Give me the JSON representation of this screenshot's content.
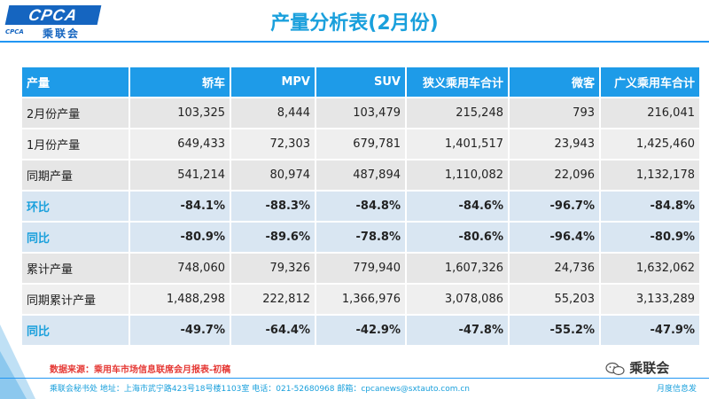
{
  "logo": {
    "text": "CPCA",
    "sub": "CPCA",
    "cn": "乘联会"
  },
  "title": "产量分析表(2月份)",
  "table": {
    "headers": [
      "产量",
      "轿车",
      "MPV",
      "SUV",
      "狭义乘用车合计",
      "微客",
      "广义乘用车合计"
    ],
    "rows": [
      {
        "label": "2月份产量",
        "values": [
          "103,325",
          "8,444",
          "103,479",
          "215,248",
          "793",
          "216,041"
        ],
        "style": "a"
      },
      {
        "label": "1月份产量",
        "values": [
          "649,433",
          "72,303",
          "679,781",
          "1,401,517",
          "23,943",
          "1,425,460"
        ],
        "style": "b"
      },
      {
        "label": "同期产量",
        "values": [
          "541,214",
          "80,974",
          "487,894",
          "1,110,082",
          "22,096",
          "1,132,178"
        ],
        "style": "a"
      },
      {
        "label": "环比",
        "values": [
          "-84.1%",
          "-88.3%",
          "-84.8%",
          "-84.6%",
          "-96.7%",
          "-84.8%"
        ],
        "style": "pct"
      },
      {
        "label": "同比",
        "values": [
          "-80.9%",
          "-89.6%",
          "-78.8%",
          "-80.6%",
          "-96.4%",
          "-80.9%"
        ],
        "style": "pct"
      },
      {
        "label": "累计产量",
        "values": [
          "748,060",
          "79,326",
          "779,940",
          "1,607,326",
          "24,736",
          "1,632,062"
        ],
        "style": "a"
      },
      {
        "label": "同期累计产量",
        "values": [
          "1,488,298",
          "222,812",
          "1,366,976",
          "3,078,086",
          "55,203",
          "3,133,289"
        ],
        "style": "b"
      },
      {
        "label": "同比",
        "values": [
          "-49.7%",
          "-64.4%",
          "-42.9%",
          "-47.8%",
          "-55.2%",
          "-47.9%"
        ],
        "style": "pct"
      }
    ]
  },
  "source": "数据来源：乘用车市场信息联席会月报表-初稿",
  "wechat": "乘联会",
  "footer": {
    "left": "乘联会秘书处    地址：上海市武宁路423号18号楼1103室  电话：021-52680968    邮箱：cpcanews@sxtauto.com.cn",
    "right": "月度信息发"
  },
  "colors": {
    "accent": "#1aa0dc",
    "header_bg": "#1e9be8",
    "pct_bg": "#d9e6f2",
    "source_red": "#e53935"
  }
}
